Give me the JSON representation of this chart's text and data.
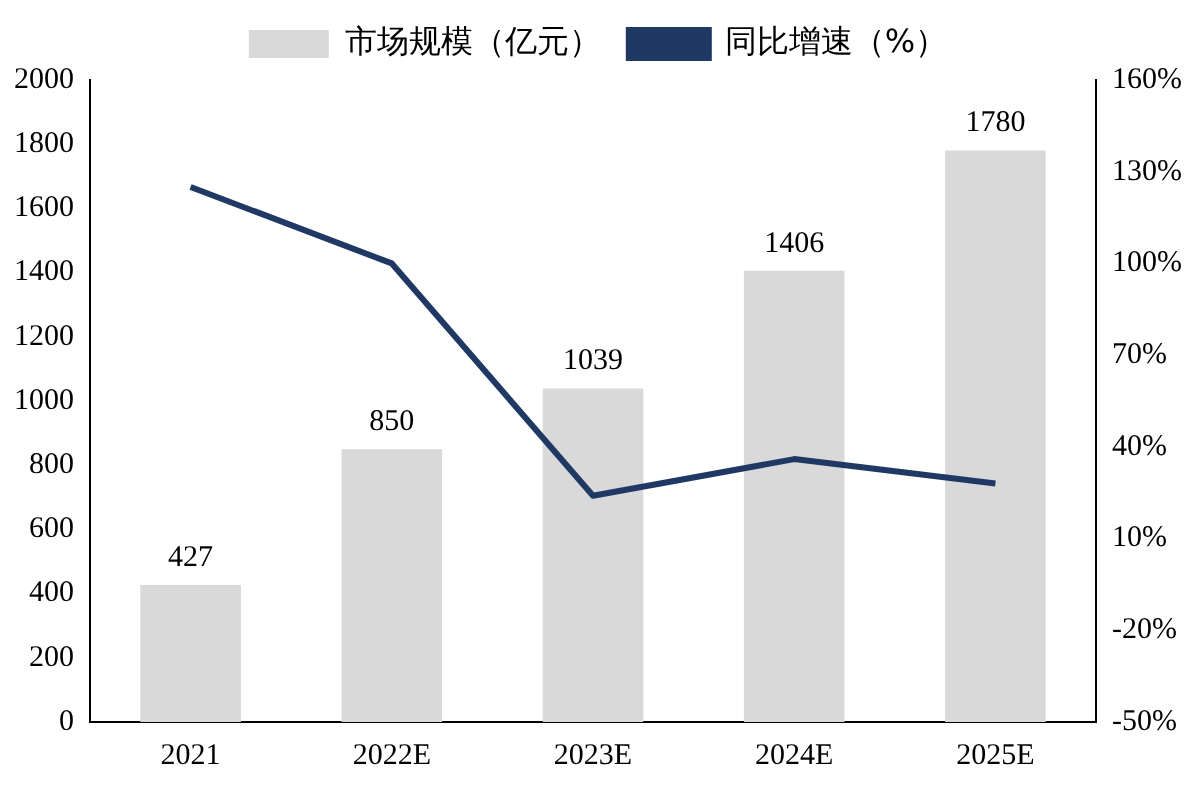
{
  "chart_data": {
    "type": "bar",
    "categories": [
      "2021",
      "2022E",
      "2023E",
      "2024E",
      "2025E"
    ],
    "series": [
      {
        "name": "市场规模（亿元）",
        "color": "#d9d9d9",
        "values": [
          427,
          850,
          1039,
          1406,
          1780
        ],
        "value_labels": [
          "427",
          "850",
          "1039",
          "1406",
          "1780"
        ]
      },
      {
        "name": "同比增速（%）",
        "type": "line",
        "axis": "y2",
        "color": "#1f3864",
        "values": [
          125,
          100,
          24,
          36,
          28
        ]
      }
    ],
    "ylim": [
      0,
      2000
    ],
    "yticks": [
      0,
      200,
      400,
      600,
      800,
      1000,
      1200,
      1400,
      1600,
      1800,
      2000
    ],
    "y2lim": [
      -50,
      160
    ],
    "y2ticks": [
      {
        "value": -50,
        "label": "-50%"
      },
      {
        "value": -20,
        "label": "-20%"
      },
      {
        "value": 10,
        "label": "10%"
      },
      {
        "value": 40,
        "label": "40%"
      },
      {
        "value": 70,
        "label": "70%"
      },
      {
        "value": 100,
        "label": "100%"
      },
      {
        "value": 130,
        "label": "130%"
      },
      {
        "value": 160,
        "label": "160%"
      }
    ],
    "grid": false,
    "legend": "top",
    "marker": "none",
    "line_style": "solid"
  }
}
